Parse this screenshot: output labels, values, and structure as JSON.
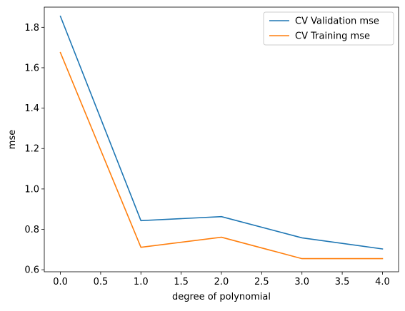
{
  "chart_data": {
    "type": "line",
    "title": "",
    "xlabel": "degree of polynomial",
    "ylabel": "mse",
    "xlim": [
      -0.2,
      4.2
    ],
    "ylim": [
      0.59,
      1.9
    ],
    "x_ticks": [
      "0.0",
      "0.5",
      "1.0",
      "1.5",
      "2.0",
      "2.5",
      "3.0",
      "3.5",
      "4.0"
    ],
    "y_ticks": [
      "0.6",
      "0.8",
      "1.0",
      "1.2",
      "1.4",
      "1.6",
      "1.8"
    ],
    "x": [
      0,
      1,
      2,
      3,
      4
    ],
    "series": [
      {
        "name": "CV Validation mse",
        "color": "#1f77b4",
        "values": [
          1.855,
          0.843,
          0.863,
          0.758,
          0.703
        ]
      },
      {
        "name": "CV Training mse",
        "color": "#ff7f0e",
        "values": [
          1.675,
          0.711,
          0.761,
          0.655,
          0.655
        ]
      }
    ],
    "grid": false,
    "legend_position": "top-right"
  }
}
